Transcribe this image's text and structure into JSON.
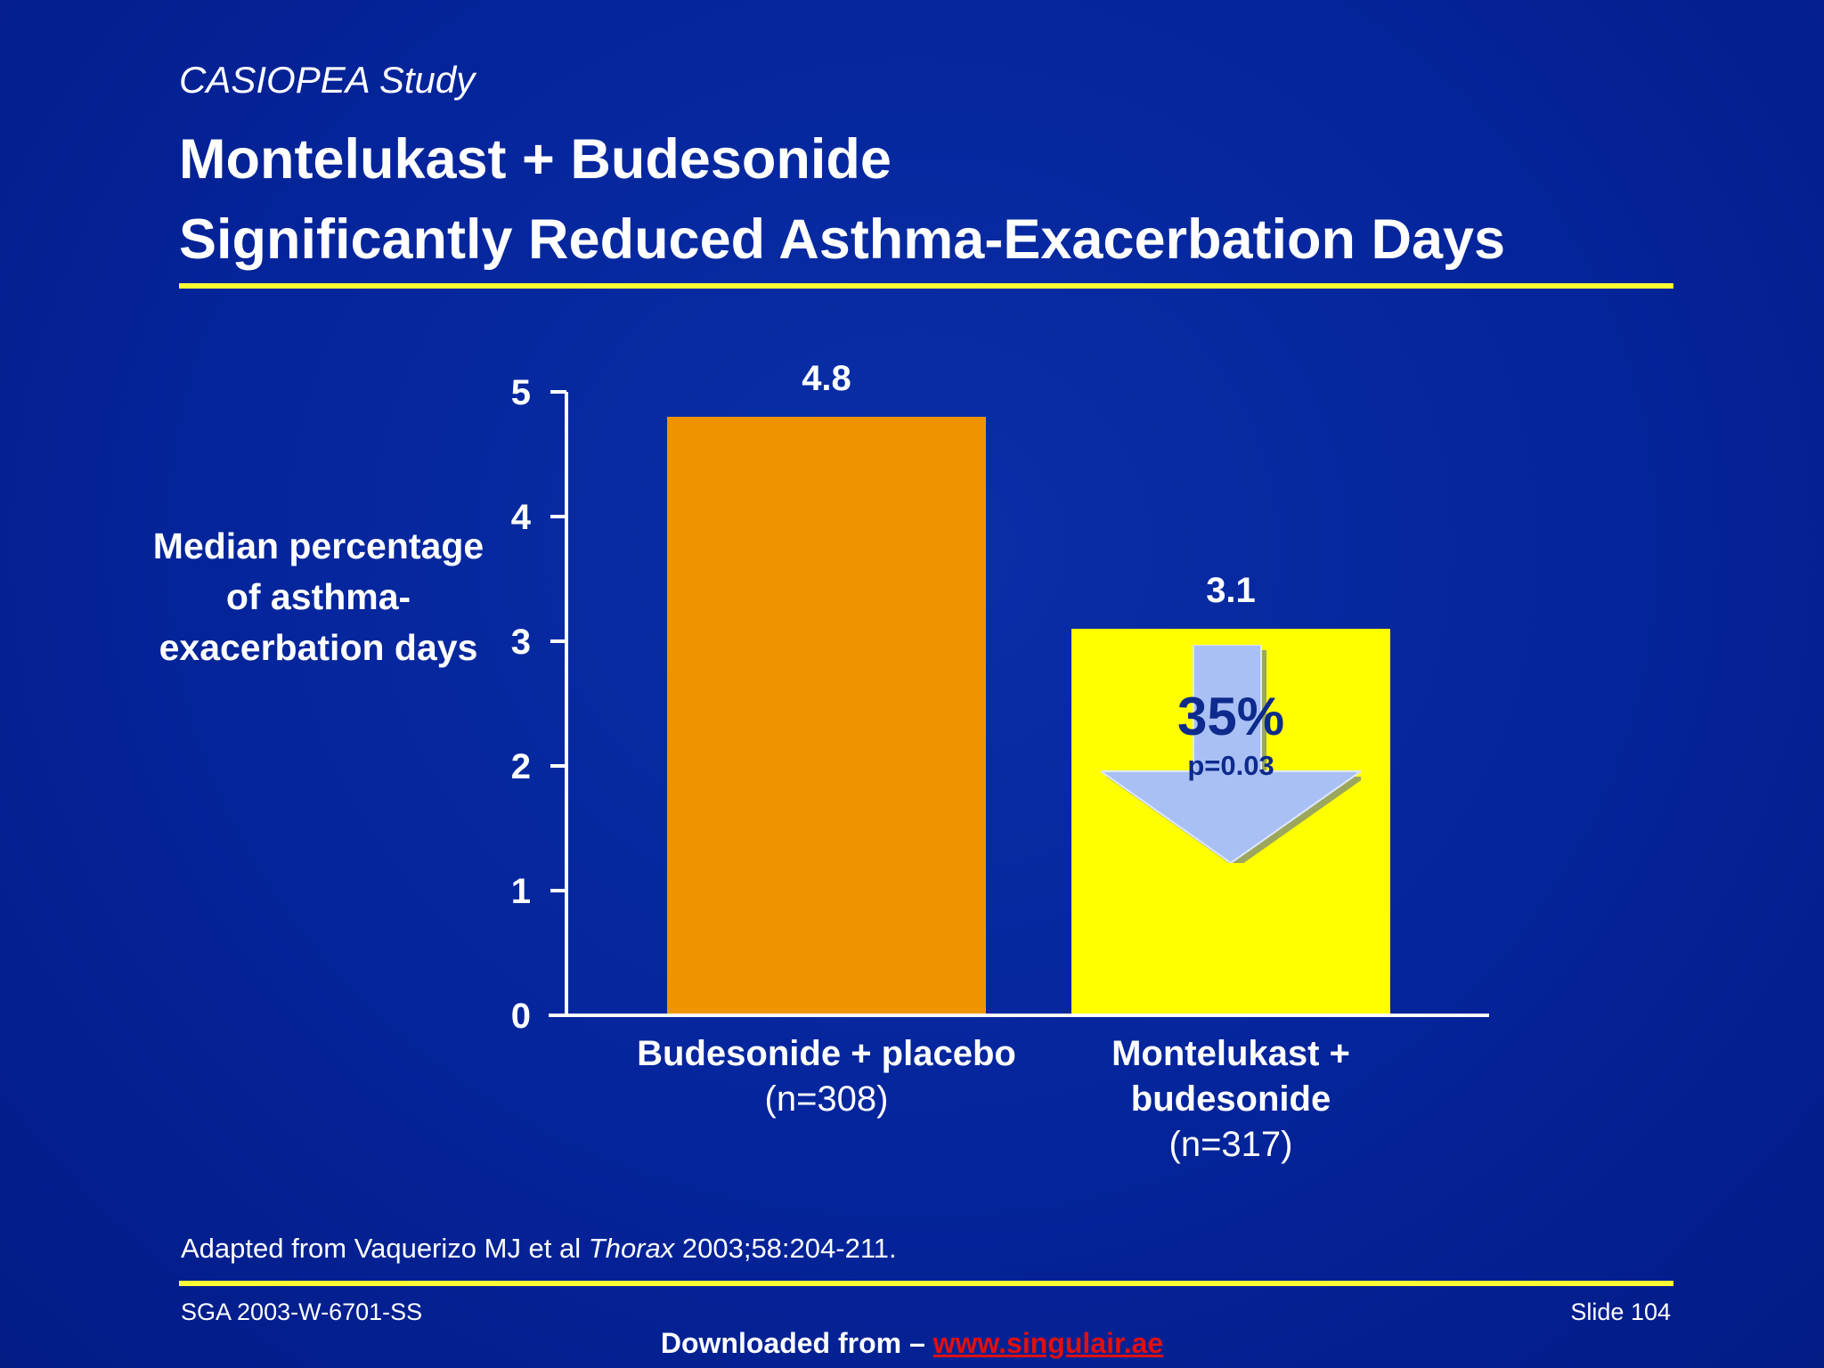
{
  "header": {
    "subtitle": "CASIOPEA Study",
    "title_line1": "Montelukast + Budesonide",
    "title_line2": "Significantly Reduced Asthma-Exacerbation Days"
  },
  "colors": {
    "background": "#04249a",
    "rule": "#ffff33",
    "bar_placebo": "#f09300",
    "bar_montelukast": "#ffff00",
    "arrow_fill": "#a9c0f5",
    "arrow_text": "#0d2a8c",
    "link": "#e01010"
  },
  "chart_data": {
    "type": "bar",
    "ylabel": "Median percentage of asthma-exacerbation days",
    "ylim": [
      0,
      5
    ],
    "yticks": [
      "0",
      "1",
      "2",
      "3",
      "4",
      "5"
    ],
    "categories": [
      "Budesonide + placebo",
      "Montelukast + budesonide"
    ],
    "category_n": [
      "(n=308)",
      "(n=317)"
    ],
    "values": [
      4.8,
      3.1
    ],
    "value_labels": [
      "4.8",
      "3.1"
    ],
    "grid": false,
    "annotation": {
      "reduction": "35%",
      "pvalue": "p=0.03"
    }
  },
  "footer": {
    "source_prefix": "Adapted from Vaquerizo MJ et al ",
    "source_journal": "Thorax",
    "source_suffix": " 2003;58:204-211.",
    "code": "SGA 2003-W-6701-SS",
    "slide": "Slide 104",
    "download_prefix": "Downloaded from – ",
    "download_link": "www.singulair.ae"
  }
}
